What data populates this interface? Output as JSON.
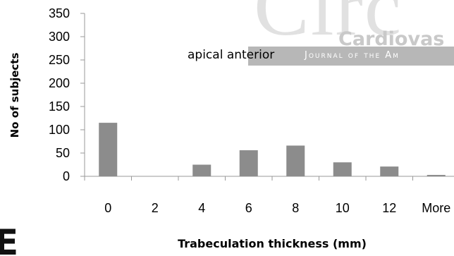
{
  "watermark": {
    "journal_big": "Circ",
    "journal_sub": "Cardiovas",
    "journal_band": "Journal of the Am",
    "corner_letter": "E"
  },
  "chart_data": {
    "type": "bar",
    "categories": [
      "0",
      "2",
      "4",
      "6",
      "8",
      "10",
      "12",
      "More"
    ],
    "values": [
      115,
      0,
      25,
      56,
      66,
      30,
      21,
      3
    ],
    "title": "",
    "annotation": "apical anterior",
    "xlabel": "Trabeculation thickness (mm)",
    "ylabel": "No of subjects",
    "ylim": [
      0,
      350
    ],
    "yticks": [
      0,
      50,
      100,
      150,
      200,
      250,
      300,
      350
    ],
    "bar_color": "#8c8c8c",
    "grid": false,
    "legend": "none"
  }
}
